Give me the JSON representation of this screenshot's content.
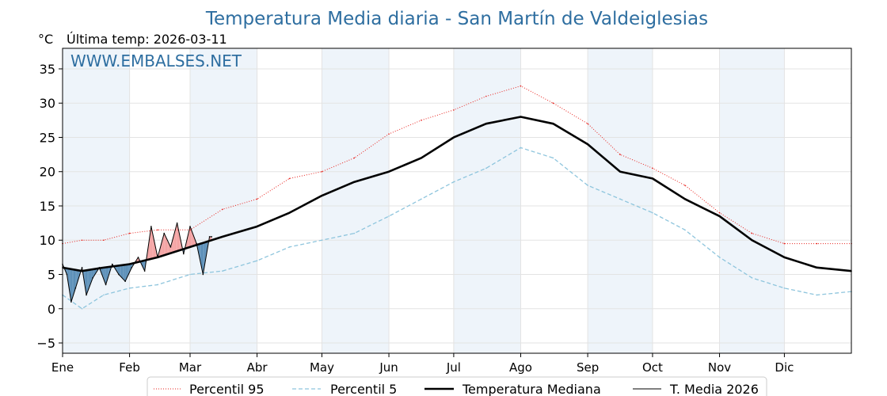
{
  "chart_data": {
    "type": "line",
    "title": "Temperatura Media diaria - San Martín de Valdeiglesias",
    "unit_label": "°C",
    "last_temp_label": "Última temp: 2026-03-11",
    "watermark": "WWW.EMBALSES.NET",
    "ylim": [
      -6.5,
      38
    ],
    "yticks": [
      -5,
      0,
      5,
      10,
      15,
      20,
      25,
      30,
      35
    ],
    "ytick_labels": [
      "−5",
      "0",
      "5",
      "10",
      "15",
      "20",
      "25",
      "30",
      "35"
    ],
    "xlim": [
      1,
      366
    ],
    "x_ticks": [
      {
        "day": 1,
        "label": "Ene"
      },
      {
        "day": 32,
        "label": "Feb"
      },
      {
        "day": 60,
        "label": "Mar"
      },
      {
        "day": 91,
        "label": "Abr"
      },
      {
        "day": 121,
        "label": "May"
      },
      {
        "day": 152,
        "label": "Jun"
      },
      {
        "day": 182,
        "label": "Jul"
      },
      {
        "day": 213,
        "label": "Ago"
      },
      {
        "day": 244,
        "label": "Sep"
      },
      {
        "day": 274,
        "label": "Oct"
      },
      {
        "day": 305,
        "label": "Nov"
      },
      {
        "day": 335,
        "label": "Dic"
      }
    ],
    "grid": true,
    "legend_position": "bottom-center",
    "colors": {
      "p95": "#e8231e",
      "p5": "#8ec5dd",
      "median": "#000000",
      "current": "#000000",
      "above_fill": "#f4a3a3",
      "below_fill": "#5b8fb8",
      "title": "#2e6ea0",
      "band": "#eef4fa"
    },
    "series": [
      {
        "name": "Percentil 95",
        "style": "dotted",
        "x": [
          1,
          10,
          20,
          32,
          45,
          60,
          75,
          91,
          106,
          121,
          136,
          152,
          167,
          182,
          197,
          213,
          228,
          244,
          259,
          274,
          289,
          305,
          320,
          335,
          350,
          366
        ],
        "y": [
          9.5,
          10,
          10,
          11,
          11.5,
          11.5,
          14.5,
          16,
          19,
          20,
          22,
          25.5,
          27.5,
          29,
          31,
          32.5,
          30,
          27,
          22.5,
          20.5,
          18,
          14,
          11,
          9.5,
          9.5,
          9.5
        ]
      },
      {
        "name": "Percentil 5",
        "style": "dashed",
        "x": [
          1,
          10,
          20,
          32,
          45,
          60,
          75,
          91,
          106,
          121,
          136,
          152,
          167,
          182,
          197,
          213,
          228,
          244,
          259,
          274,
          289,
          305,
          320,
          335,
          350,
          366
        ],
        "y": [
          2,
          0,
          2,
          3,
          3.5,
          5,
          5.5,
          7,
          9,
          10,
          11,
          13.5,
          16,
          18.5,
          20.5,
          23.5,
          22,
          18,
          16,
          14,
          11.5,
          7.5,
          4.5,
          3,
          2,
          2.5
        ]
      },
      {
        "name": "Temperatura Mediana",
        "style": "solid-thick",
        "x": [
          1,
          10,
          20,
          32,
          45,
          60,
          75,
          91,
          106,
          121,
          136,
          152,
          167,
          182,
          197,
          213,
          228,
          244,
          259,
          274,
          289,
          305,
          320,
          335,
          350,
          366
        ],
        "y": [
          6,
          5.5,
          6,
          6.5,
          7.5,
          9,
          10.5,
          12,
          14,
          16.5,
          18.5,
          20,
          22,
          25,
          27,
          28,
          27,
          24,
          20,
          19,
          16,
          13.5,
          10,
          7.5,
          6,
          5.5
        ]
      },
      {
        "name": "T. Media 2026",
        "style": "solid-thin",
        "x": [
          1,
          3,
          5,
          7,
          10,
          12,
          15,
          18,
          21,
          24,
          27,
          30,
          33,
          36,
          39,
          42,
          45,
          48,
          51,
          54,
          57,
          60,
          63,
          66,
          69,
          70
        ],
        "y": [
          6.5,
          5,
          1,
          3,
          6,
          2,
          4.5,
          6,
          3.5,
          6.5,
          5,
          4,
          6,
          7.5,
          5.5,
          12,
          7.5,
          11,
          9,
          12.5,
          8,
          12,
          9.5,
          5,
          10.5,
          10.5
        ]
      }
    ]
  }
}
